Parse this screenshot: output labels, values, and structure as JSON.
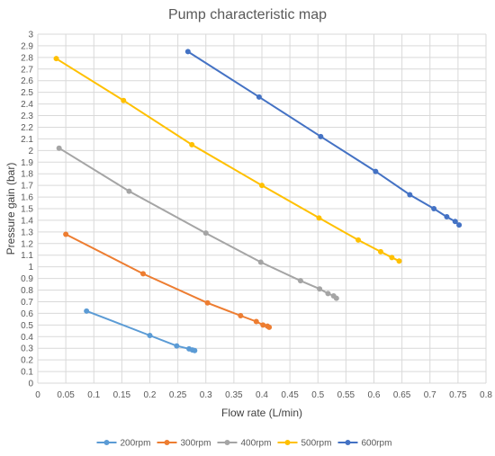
{
  "chart_data": {
    "type": "scatter",
    "title": "Pump characteristic map",
    "xlabel": "Flow rate (L/min)",
    "ylabel": "Pressure gain (bar)",
    "xlim": [
      0,
      0.8
    ],
    "ylim": [
      0,
      3
    ],
    "x_ticks": [
      "0",
      "0.05",
      "0.1",
      "0.15",
      "0.2",
      "0.25",
      "0.3",
      "0.35",
      "0.4",
      "0.45",
      "0.5",
      "0.55",
      "0.6",
      "0.65",
      "0.7",
      "0.75",
      "0.8"
    ],
    "y_ticks": [
      "0",
      "0.1",
      "0.2",
      "0.3",
      "0.4",
      "0.5",
      "0.6",
      "0.7",
      "0.8",
      "0.9",
      "1",
      "1.1",
      "1.2",
      "1.3",
      "1.4",
      "1.5",
      "1.6",
      "1.7",
      "1.8",
      "1.9",
      "2",
      "2.1",
      "2.2",
      "2.3",
      "2.4",
      "2.5",
      "2.6",
      "2.7",
      "2.8",
      "2.9",
      "3"
    ],
    "grid": true,
    "legend": "bottom",
    "marker": "circle",
    "line_style": "solid",
    "series": [
      {
        "name": "200rpm",
        "color": "#5B9BD5",
        "x": [
          0.087,
          0.2,
          0.248,
          0.27,
          0.276,
          0.28
        ],
        "y": [
          0.62,
          0.41,
          0.32,
          0.295,
          0.285,
          0.28
        ]
      },
      {
        "name": "300rpm",
        "color": "#ED7D31",
        "x": [
          0.05,
          0.188,
          0.303,
          0.362,
          0.39,
          0.402,
          0.41,
          0.413
        ],
        "y": [
          1.28,
          0.94,
          0.69,
          0.58,
          0.53,
          0.5,
          0.49,
          0.48
        ]
      },
      {
        "name": "400rpm",
        "color": "#A5A5A5",
        "x": [
          0.038,
          0.163,
          0.3,
          0.398,
          0.469,
          0.503,
          0.518,
          0.528,
          0.533
        ],
        "y": [
          2.02,
          1.65,
          1.29,
          1.04,
          0.88,
          0.81,
          0.77,
          0.75,
          0.73
        ]
      },
      {
        "name": "500rpm",
        "color": "#FFC000",
        "x": [
          0.033,
          0.153,
          0.275,
          0.4,
          0.502,
          0.572,
          0.612,
          0.632,
          0.645
        ],
        "y": [
          2.79,
          2.43,
          2.05,
          1.7,
          1.42,
          1.23,
          1.13,
          1.08,
          1.05
        ]
      },
      {
        "name": "600rpm",
        "color": "#4472C4",
        "x": [
          0.268,
          0.395,
          0.505,
          0.603,
          0.664,
          0.707,
          0.73,
          0.745,
          0.752
        ],
        "y": [
          2.85,
          2.46,
          2.12,
          1.82,
          1.62,
          1.5,
          1.43,
          1.39,
          1.36
        ]
      }
    ]
  }
}
